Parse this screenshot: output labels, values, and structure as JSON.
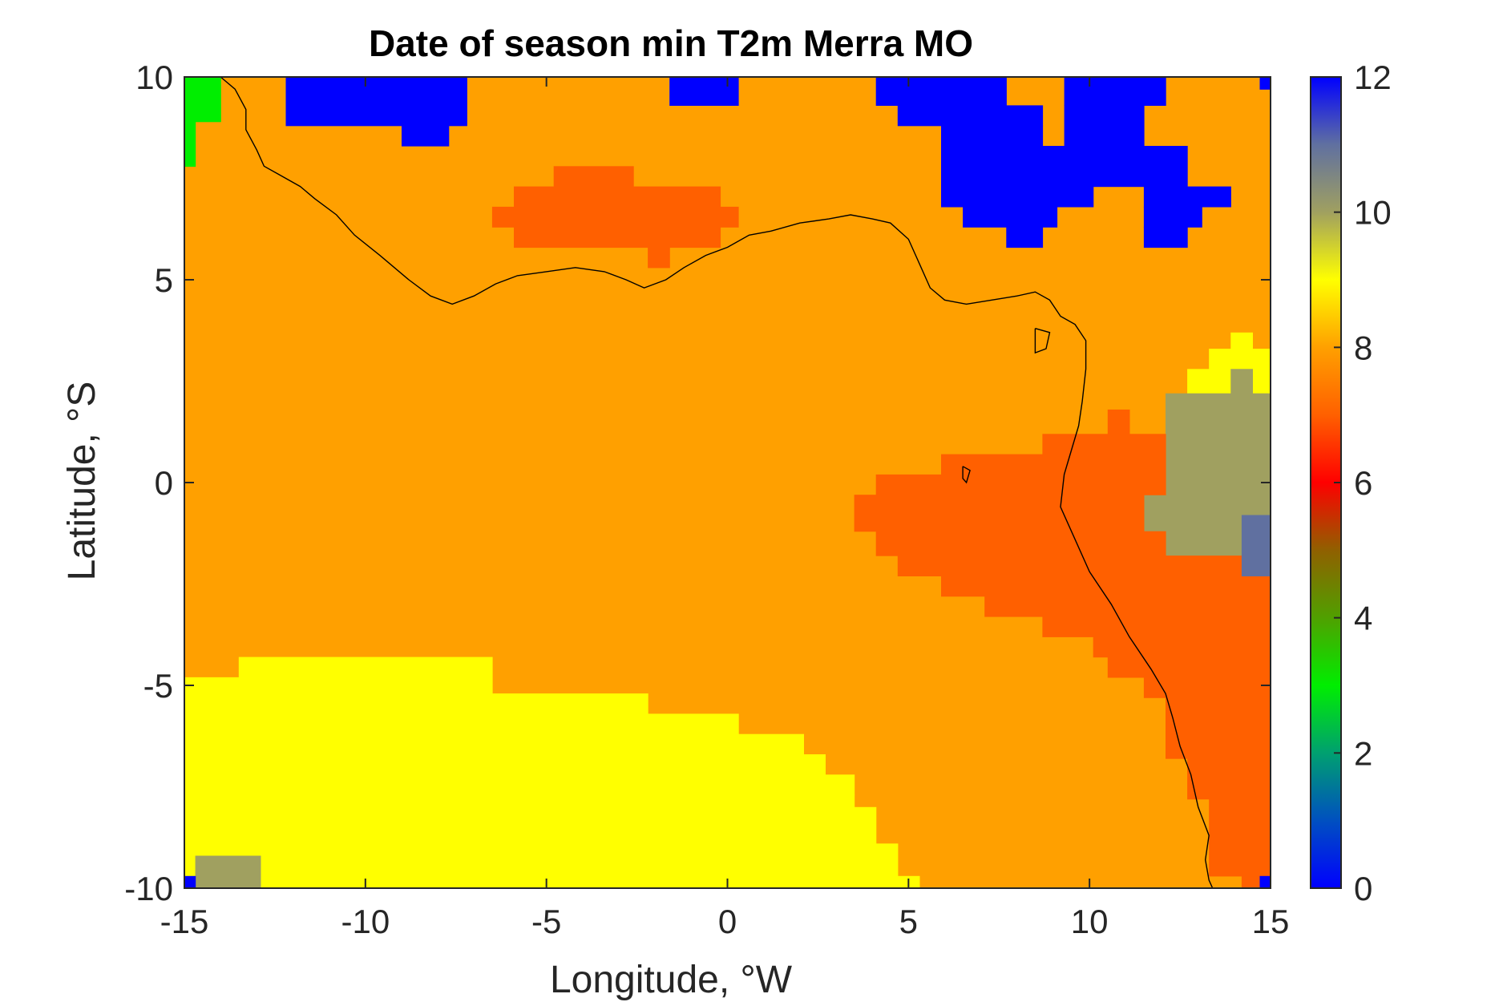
{
  "chart_data": {
    "type": "heatmap",
    "title": "Date of season min T2m Merra MO",
    "xlabel": "Longitude, °W",
    "ylabel": "Latitude, °S",
    "xlim": [
      -15,
      15
    ],
    "ylim": [
      -10,
      10
    ],
    "x_ticks": [
      -15,
      -10,
      -5,
      0,
      5,
      10,
      15
    ],
    "x_tick_labels": [
      "-15",
      "-10",
      "-5",
      "0",
      "5",
      "10",
      "15"
    ],
    "y_ticks": [
      -10,
      -5,
      0,
      5,
      10
    ],
    "y_tick_labels": [
      "-10",
      "-5",
      "0",
      "5",
      "10"
    ],
    "colorbar": {
      "limits": [
        0,
        12
      ],
      "ticks": [
        0,
        2,
        4,
        6,
        8,
        10,
        12
      ],
      "tick_labels": [
        "0",
        "2",
        "4",
        "6",
        "8",
        "10",
        "12"
      ],
      "stops": [
        {
          "v": 0,
          "color": "#0000ff"
        },
        {
          "v": 1,
          "color": "#0050c0"
        },
        {
          "v": 2,
          "color": "#00a070"
        },
        {
          "v": 3,
          "color": "#00ee00"
        },
        {
          "v": 4,
          "color": "#50a000"
        },
        {
          "v": 5,
          "color": "#906000"
        },
        {
          "v": 6,
          "color": "#ff0000"
        },
        {
          "v": 7,
          "color": "#ff6000"
        },
        {
          "v": 8,
          "color": "#ffa000"
        },
        {
          "v": 9,
          "color": "#ffff00"
        },
        {
          "v": 10,
          "color": "#a0a060"
        },
        {
          "v": 11,
          "color": "#6070a0"
        },
        {
          "v": 12,
          "color": "#0000ff"
        }
      ]
    },
    "background_value": 8,
    "regions": [
      {
        "value": 12,
        "x": [
          -15.0,
          -14.7
        ],
        "y": [
          9.7,
          10.0
        ]
      },
      {
        "value": 3,
        "x": [
          -15.0,
          -14.0
        ],
        "y": [
          8.9,
          10.0
        ]
      },
      {
        "value": 3,
        "x": [
          -15.0,
          -14.7
        ],
        "y": [
          7.8,
          8.9
        ]
      },
      {
        "value": 12,
        "x": [
          -12.2,
          -7.2
        ],
        "y": [
          8.8,
          10.0
        ]
      },
      {
        "value": 12,
        "x": [
          -9.0,
          -7.7
        ],
        "y": [
          8.3,
          8.8
        ]
      },
      {
        "value": 12,
        "x": [
          -1.6,
          0.3
        ],
        "y": [
          9.3,
          10.0
        ]
      },
      {
        "value": 12,
        "x": [
          4.1,
          7.7
        ],
        "y": [
          9.3,
          10.0
        ]
      },
      {
        "value": 12,
        "x": [
          4.7,
          8.7
        ],
        "y": [
          8.8,
          9.3
        ]
      },
      {
        "value": 12,
        "x": [
          9.3,
          12.1
        ],
        "y": [
          9.3,
          10.0
        ]
      },
      {
        "value": 12,
        "x": [
          9.3,
          11.5
        ],
        "y": [
          8.3,
          9.3
        ]
      },
      {
        "value": 12,
        "x": [
          5.9,
          8.7
        ],
        "y": [
          8.3,
          8.8
        ]
      },
      {
        "value": 12,
        "x": [
          5.9,
          12.7
        ],
        "y": [
          7.3,
          8.3
        ]
      },
      {
        "value": 12,
        "x": [
          5.9,
          10.1
        ],
        "y": [
          6.8,
          7.3
        ]
      },
      {
        "value": 12,
        "x": [
          11.5,
          13.9
        ],
        "y": [
          6.8,
          7.3
        ]
      },
      {
        "value": 12,
        "x": [
          6.5,
          9.1
        ],
        "y": [
          6.3,
          6.8
        ]
      },
      {
        "value": 12,
        "x": [
          11.5,
          13.1
        ],
        "y": [
          6.3,
          6.8
        ]
      },
      {
        "value": 12,
        "x": [
          7.7,
          8.7
        ],
        "y": [
          5.8,
          6.3
        ]
      },
      {
        "value": 12,
        "x": [
          11.5,
          12.7
        ],
        "y": [
          5.8,
          6.3
        ]
      },
      {
        "value": 12,
        "x": [
          14.7,
          15.0
        ],
        "y": [
          9.7,
          10.0
        ]
      },
      {
        "value": 7,
        "x": [
          -4.8,
          -2.6
        ],
        "y": [
          7.3,
          7.8
        ]
      },
      {
        "value": 7,
        "x": [
          -5.9,
          -0.2
        ],
        "y": [
          6.8,
          7.3
        ]
      },
      {
        "value": 7,
        "x": [
          -6.5,
          0.3
        ],
        "y": [
          6.3,
          6.8
        ]
      },
      {
        "value": 7,
        "x": [
          -5.9,
          -0.2
        ],
        "y": [
          5.8,
          6.3
        ]
      },
      {
        "value": 7,
        "x": [
          -2.2,
          -1.6
        ],
        "y": [
          5.3,
          5.8
        ]
      },
      {
        "value": 9,
        "x": [
          13.9,
          14.5
        ],
        "y": [
          3.3,
          3.7
        ]
      },
      {
        "value": 9,
        "x": [
          13.3,
          15.0
        ],
        "y": [
          2.8,
          3.3
        ]
      },
      {
        "value": 9,
        "x": [
          12.7,
          15.0
        ],
        "y": [
          2.2,
          2.8
        ]
      },
      {
        "value": 10,
        "x": [
          13.9,
          14.5
        ],
        "y": [
          2.2,
          2.8
        ]
      },
      {
        "value": 10,
        "x": [
          12.1,
          15.0
        ],
        "y": [
          -0.3,
          2.2
        ]
      },
      {
        "value": 10,
        "x": [
          11.5,
          15.0
        ],
        "y": [
          -1.2,
          -0.3
        ]
      },
      {
        "value": 10,
        "x": [
          12.1,
          15.0
        ],
        "y": [
          -1.8,
          -1.2
        ]
      },
      {
        "value": 7,
        "x": [
          10.5,
          11.1
        ],
        "y": [
          1.2,
          1.8
        ]
      },
      {
        "value": 7,
        "x": [
          8.7,
          12.1
        ],
        "y": [
          -0.3,
          1.2
        ]
      },
      {
        "value": 7,
        "x": [
          5.9,
          8.7
        ],
        "y": [
          -0.3,
          0.7
        ]
      },
      {
        "value": 7,
        "x": [
          4.1,
          5.9
        ],
        "y": [
          -0.3,
          0.2
        ]
      },
      {
        "value": 7,
        "x": [
          3.5,
          11.5
        ],
        "y": [
          -1.2,
          -0.3
        ]
      },
      {
        "value": 7,
        "x": [
          4.1,
          12.1
        ],
        "y": [
          -1.8,
          -1.2
        ]
      },
      {
        "value": 7,
        "x": [
          4.7,
          15.0
        ],
        "y": [
          -2.3,
          -1.8
        ]
      },
      {
        "value": 7,
        "x": [
          5.9,
          15.0
        ],
        "y": [
          -2.8,
          -2.3
        ]
      },
      {
        "value": 7,
        "x": [
          7.1,
          15.0
        ],
        "y": [
          -3.3,
          -2.8
        ]
      },
      {
        "value": 7,
        "x": [
          8.7,
          15.0
        ],
        "y": [
          -3.8,
          -3.3
        ]
      },
      {
        "value": 7,
        "x": [
          10.1,
          15.0
        ],
        "y": [
          -4.3,
          -3.8
        ]
      },
      {
        "value": 7,
        "x": [
          10.5,
          15.0
        ],
        "y": [
          -4.8,
          -4.3
        ]
      },
      {
        "value": 7,
        "x": [
          11.5,
          15.0
        ],
        "y": [
          -5.3,
          -4.8
        ]
      },
      {
        "value": 7,
        "x": [
          12.1,
          15.0
        ],
        "y": [
          -5.8,
          -5.3
        ]
      },
      {
        "value": 7,
        "x": [
          12.1,
          15.0
        ],
        "y": [
          -6.8,
          -5.8
        ]
      },
      {
        "value": 7,
        "x": [
          12.7,
          15.0
        ],
        "y": [
          -7.8,
          -6.8
        ]
      },
      {
        "value": 7,
        "x": [
          13.3,
          15.0
        ],
        "y": [
          -9.7,
          -7.8
        ]
      },
      {
        "value": 7,
        "x": [
          14.2,
          15.0
        ],
        "y": [
          -10.0,
          -9.7
        ]
      },
      {
        "value": 11,
        "x": [
          14.2,
          15.0
        ],
        "y": [
          -2.3,
          -0.8
        ]
      },
      {
        "value": 9,
        "x": [
          -13.5,
          -6.5
        ],
        "y": [
          -5.2,
          -4.3
        ]
      },
      {
        "value": 9,
        "x": [
          -15.0,
          -13.5
        ],
        "y": [
          -5.2,
          -4.8
        ]
      },
      {
        "value": 9,
        "x": [
          -15.0,
          -2.2
        ],
        "y": [
          -5.7,
          -5.2
        ]
      },
      {
        "value": 9,
        "x": [
          -15.0,
          0.3
        ],
        "y": [
          -6.2,
          -5.7
        ]
      },
      {
        "value": 9,
        "x": [
          -15.0,
          2.1
        ],
        "y": [
          -6.7,
          -6.2
        ]
      },
      {
        "value": 9,
        "x": [
          -15.0,
          2.7
        ],
        "y": [
          -7.2,
          -6.7
        ]
      },
      {
        "value": 9,
        "x": [
          -15.0,
          3.5
        ],
        "y": [
          -7.7,
          -7.2
        ]
      },
      {
        "value": 9,
        "x": [
          -15.0,
          3.5
        ],
        "y": [
          -8.0,
          -7.7
        ]
      },
      {
        "value": 9,
        "x": [
          -15.0,
          4.1
        ],
        "y": [
          -8.9,
          -8.0
        ]
      },
      {
        "value": 9,
        "x": [
          -15.0,
          4.7
        ],
        "y": [
          -9.7,
          -8.9
        ]
      },
      {
        "value": 9,
        "x": [
          -15.0,
          5.3
        ],
        "y": [
          -10.0,
          -9.7
        ]
      },
      {
        "value": 10,
        "x": [
          -14.7,
          -12.9
        ],
        "y": [
          -10.0,
          -9.2
        ]
      },
      {
        "value": 12,
        "x": [
          -15.0,
          -14.7
        ],
        "y": [
          -10.0,
          -9.7
        ]
      },
      {
        "value": 12,
        "x": [
          14.7,
          15.0
        ],
        "y": [
          -10.0,
          -9.7
        ]
      }
    ],
    "coastline": [
      [
        [
          -14.0,
          10.0
        ],
        [
          -13.6,
          9.7
        ],
        [
          -13.3,
          9.2
        ],
        [
          -13.3,
          8.7
        ],
        [
          -13.0,
          8.2
        ],
        [
          -12.8,
          7.8
        ],
        [
          -12.4,
          7.6
        ],
        [
          -11.8,
          7.3
        ],
        [
          -11.4,
          7.0
        ],
        [
          -10.8,
          6.6
        ],
        [
          -10.3,
          6.1
        ],
        [
          -9.6,
          5.6
        ],
        [
          -8.8,
          5.0
        ],
        [
          -8.2,
          4.6
        ],
        [
          -7.6,
          4.4
        ],
        [
          -7.0,
          4.6
        ],
        [
          -6.4,
          4.9
        ],
        [
          -5.8,
          5.1
        ],
        [
          -5.0,
          5.2
        ],
        [
          -4.2,
          5.3
        ],
        [
          -3.4,
          5.2
        ],
        [
          -2.8,
          5.0
        ],
        [
          -2.3,
          4.8
        ],
        [
          -1.7,
          5.0
        ],
        [
          -1.2,
          5.3
        ],
        [
          -0.6,
          5.6
        ],
        [
          0.0,
          5.8
        ],
        [
          0.6,
          6.1
        ],
        [
          1.2,
          6.2
        ],
        [
          2.0,
          6.4
        ],
        [
          2.8,
          6.5
        ],
        [
          3.4,
          6.6
        ],
        [
          4.0,
          6.5
        ],
        [
          4.5,
          6.4
        ],
        [
          5.0,
          6.0
        ],
        [
          5.3,
          5.4
        ],
        [
          5.6,
          4.8
        ],
        [
          6.0,
          4.5
        ],
        [
          6.6,
          4.4
        ],
        [
          7.3,
          4.5
        ],
        [
          8.0,
          4.6
        ],
        [
          8.5,
          4.7
        ],
        [
          8.9,
          4.5
        ],
        [
          9.2,
          4.1
        ],
        [
          9.6,
          3.9
        ],
        [
          9.9,
          3.5
        ],
        [
          9.9,
          2.8
        ],
        [
          9.8,
          2.0
        ],
        [
          9.7,
          1.4
        ],
        [
          9.5,
          0.8
        ],
        [
          9.3,
          0.2
        ],
        [
          9.2,
          -0.6
        ],
        [
          9.6,
          -1.4
        ],
        [
          10.0,
          -2.2
        ],
        [
          10.6,
          -3.0
        ],
        [
          11.1,
          -3.8
        ],
        [
          11.7,
          -4.6
        ],
        [
          12.1,
          -5.2
        ],
        [
          12.3,
          -5.8
        ],
        [
          12.5,
          -6.5
        ],
        [
          12.8,
          -7.2
        ],
        [
          13.0,
          -8.0
        ],
        [
          13.3,
          -8.7
        ],
        [
          13.2,
          -9.3
        ],
        [
          13.3,
          -9.8
        ],
        [
          13.4,
          -10.0
        ]
      ],
      [
        [
          8.5,
          3.8
        ],
        [
          8.9,
          3.7
        ],
        [
          8.8,
          3.3
        ],
        [
          8.5,
          3.2
        ],
        [
          8.5,
          3.8
        ]
      ],
      [
        [
          6.5,
          0.4
        ],
        [
          6.7,
          0.3
        ],
        [
          6.6,
          0.0
        ],
        [
          6.5,
          0.1
        ],
        [
          6.5,
          0.4
        ]
      ]
    ]
  }
}
